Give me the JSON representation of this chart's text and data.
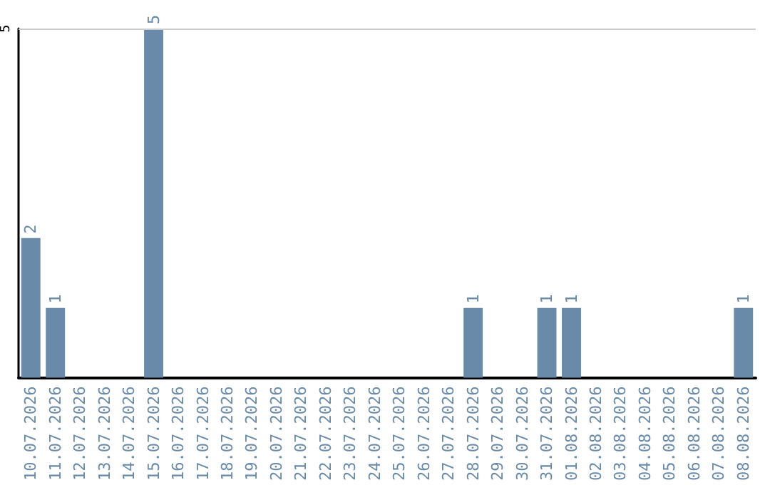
{
  "chart_data": {
    "type": "bar",
    "categories": [
      "10.07.2026",
      "11.07.2026",
      "12.07.2026",
      "13.07.2026",
      "14.07.2026",
      "15.07.2026",
      "16.07.2026",
      "17.07.2026",
      "18.07.2026",
      "19.07.2026",
      "20.07.2026",
      "21.07.2026",
      "22.07.2026",
      "23.07.2026",
      "24.07.2026",
      "25.07.2026",
      "26.07.2026",
      "27.07.2026",
      "28.07.2026",
      "29.07.2026",
      "30.07.2026",
      "31.07.2026",
      "01.08.2026",
      "02.08.2026",
      "03.08.2026",
      "04.08.2026",
      "05.08.2026",
      "06.08.2026",
      "07.08.2026",
      "08.08.2026"
    ],
    "values": [
      2,
      1,
      0,
      0,
      0,
      5,
      0,
      0,
      0,
      0,
      0,
      0,
      0,
      0,
      0,
      0,
      0,
      0,
      1,
      0,
      0,
      1,
      1,
      0,
      0,
      0,
      0,
      0,
      0,
      1
    ],
    "value_labels": [
      "2",
      "1",
      null,
      null,
      null,
      "5",
      null,
      null,
      null,
      null,
      null,
      null,
      null,
      null,
      null,
      null,
      null,
      null,
      "1",
      null,
      null,
      "1",
      "1",
      null,
      null,
      null,
      null,
      null,
      null,
      "1"
    ],
    "color": "#6a8aaa",
    "ylim": [
      0,
      5
    ],
    "yticks": [
      5
    ],
    "ref_lines": [
      {
        "axis": "y",
        "value": 5,
        "color": "#cccccc",
        "line_style": "solid"
      }
    ]
  }
}
